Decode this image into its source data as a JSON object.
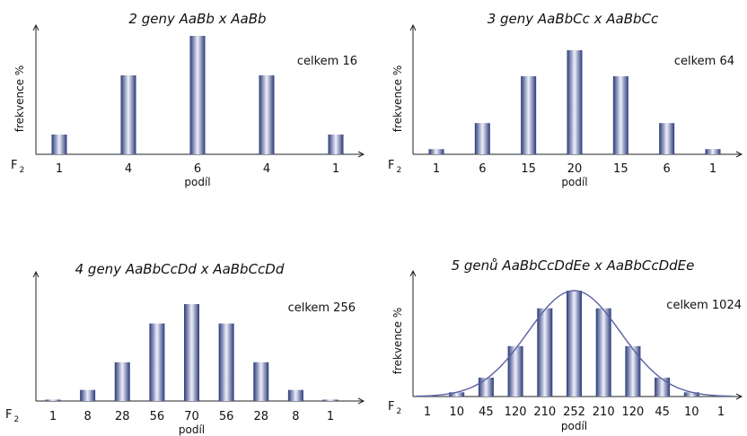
{
  "y_axis_label": "frekvence %",
  "x_axis_label": "podíl",
  "generation_label": "F",
  "generation_subscript": "2",
  "colors": {
    "bar_edge": "#2b3a78",
    "bar_highlight": "#eef0fb",
    "curve": "#5a5fa0",
    "axis": "#222222"
  },
  "chart_data": [
    {
      "type": "bar",
      "title": "2 geny  AaBb x AaBb",
      "total_label": "celkem 16",
      "categories": [
        "1",
        "4",
        "6",
        "4",
        "1"
      ],
      "values": [
        1,
        4,
        6,
        4,
        1
      ],
      "xlabel": "podíl",
      "ylabel": "frekvence %",
      "grid": false
    },
    {
      "type": "bar",
      "title": "3 geny  AaBbCc x AaBbCc",
      "total_label": "celkem 64",
      "categories": [
        "1",
        "6",
        "15",
        "20",
        "15",
        "6",
        "1"
      ],
      "values": [
        1,
        6,
        15,
        20,
        15,
        6,
        1
      ],
      "xlabel": "podíl",
      "ylabel": "frekvence %",
      "grid": false
    },
    {
      "type": "bar",
      "title": "4 geny  AaBbCcDd x AaBbCcDd",
      "total_label": "celkem 256",
      "categories": [
        "1",
        "8",
        "28",
        "56",
        "70",
        "56",
        "28",
        "8",
        "1"
      ],
      "values": [
        1,
        8,
        28,
        56,
        70,
        56,
        28,
        8,
        1
      ],
      "xlabel": "podíl",
      "ylabel": "",
      "grid": false
    },
    {
      "type": "bar",
      "title": "5 genů  AaBbCcDdEe x AaBbCcDdEe",
      "total_label": "celkem 1024",
      "categories": [
        "1",
        "10",
        "45",
        "120",
        "210",
        "252",
        "210",
        "120",
        "45",
        "10",
        "1"
      ],
      "values": [
        1,
        10,
        45,
        120,
        210,
        252,
        210,
        120,
        45,
        10,
        1
      ],
      "xlabel": "podíl",
      "ylabel": "frekvence %",
      "grid": false,
      "normal_curve": true
    }
  ]
}
